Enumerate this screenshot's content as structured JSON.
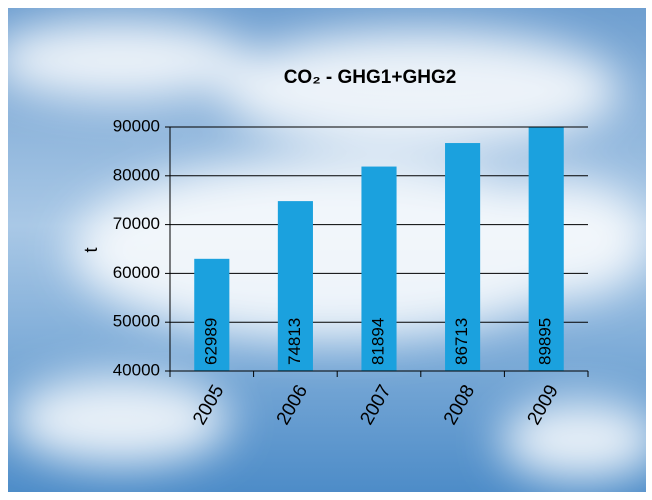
{
  "chart_data": {
    "type": "bar",
    "title": "CO₂ - GHG1+GHG2",
    "y_label": "t",
    "categories": [
      "2005",
      "2006",
      "2007",
      "2008",
      "2009"
    ],
    "values": [
      62989,
      74813,
      81894,
      86713,
      89895
    ],
    "color": "#1ba1de",
    "ylim": [
      40000,
      90000
    ],
    "yticks": [
      40000,
      50000,
      60000,
      70000,
      80000,
      90000
    ],
    "grid": true
  }
}
